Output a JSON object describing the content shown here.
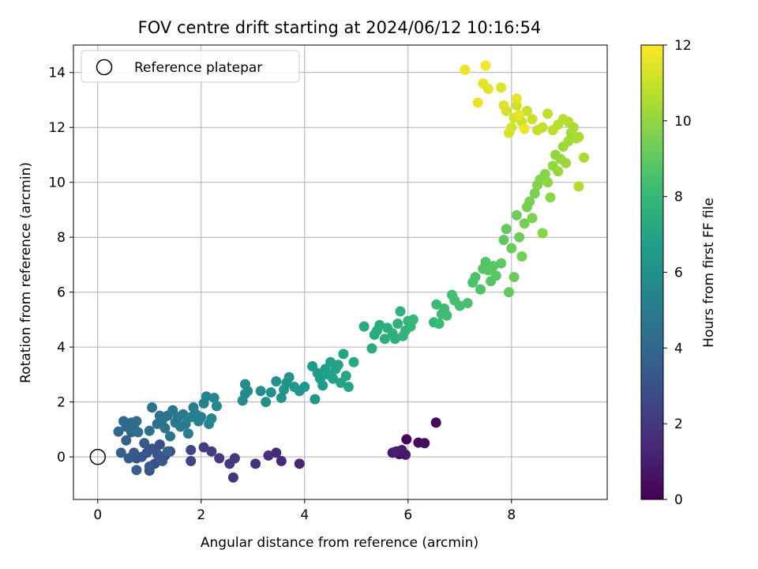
{
  "chart_data": {
    "type": "scatter",
    "title": "FOV centre drift starting at 2024/06/12 10:16:54",
    "xlabel": "Angular distance from reference (arcmin)",
    "ylabel": "Rotation from reference (arcmin)",
    "xlim": [
      -0.47,
      9.85
    ],
    "ylim": [
      -1.55,
      15.0
    ],
    "xticks": [
      0,
      2,
      4,
      6,
      8
    ],
    "yticks": [
      0,
      2,
      4,
      6,
      8,
      10,
      12,
      14
    ],
    "xtick_labels": [
      "0",
      "2",
      "4",
      "6",
      "8"
    ],
    "ytick_labels": [
      "0",
      "2",
      "4",
      "6",
      "8",
      "10",
      "12",
      "14"
    ],
    "grid": true,
    "legend": {
      "position": "top-left",
      "entries": [
        {
          "label": "Reference platepar",
          "marker": "open-circle"
        }
      ]
    },
    "reference_point": {
      "x": 0,
      "y": 0
    },
    "colorbar": {
      "label": "Hours from first FF file",
      "range": [
        0,
        12
      ],
      "ticks": [
        0,
        2,
        4,
        6,
        8,
        10,
        12
      ],
      "tick_labels": [
        "0",
        "2",
        "4",
        "6",
        "8",
        "10",
        "12"
      ],
      "colormap": "viridis",
      "stops": [
        "#440154",
        "#482878",
        "#3e4989",
        "#31688e",
        "#26828e",
        "#1f9e89",
        "#35b779",
        "#6ece58",
        "#b5de2b",
        "#fde725"
      ]
    },
    "points": [
      [
        6.54,
        1.25,
        0.1
      ],
      [
        5.97,
        0.64,
        0.2
      ],
      [
        6.2,
        0.52,
        0.3
      ],
      [
        6.32,
        0.5,
        0.4
      ],
      [
        5.78,
        0.2,
        0.5
      ],
      [
        5.83,
        0.1,
        0.6
      ],
      [
        5.7,
        0.15,
        0.7
      ],
      [
        5.95,
        0.08,
        0.8
      ],
      [
        5.88,
        0.25,
        0.9
      ],
      [
        5.75,
        0.18,
        1.0
      ],
      [
        3.9,
        -0.25,
        1.3
      ],
      [
        3.55,
        -0.15,
        1.4
      ],
      [
        3.45,
        0.15,
        1.5
      ],
      [
        3.3,
        0.05,
        1.6
      ],
      [
        3.05,
        -0.25,
        1.7
      ],
      [
        2.62,
        -0.75,
        1.8
      ],
      [
        2.65,
        -0.05,
        1.9
      ],
      [
        2.55,
        -0.25,
        2.0
      ],
      [
        2.35,
        -0.05,
        2.1
      ],
      [
        2.2,
        0.2,
        2.2
      ],
      [
        2.05,
        0.35,
        2.3
      ],
      [
        1.8,
        -0.15,
        2.4
      ],
      [
        1.8,
        0.25,
        2.5
      ],
      [
        1.4,
        0.2,
        2.6
      ],
      [
        1.3,
        0.05,
        2.7
      ],
      [
        1.2,
        0.45,
        2.8
      ],
      [
        1.1,
        -0.25,
        2.9
      ],
      [
        1.0,
        -0.5,
        3.0
      ],
      [
        0.95,
        0.15,
        3.0
      ],
      [
        0.85,
        0.0,
        3.1
      ],
      [
        1.05,
        0.3,
        3.1
      ],
      [
        1.15,
        0.1,
        3.2
      ],
      [
        0.75,
        -0.05,
        3.2
      ],
      [
        1.25,
        -0.15,
        3.3
      ],
      [
        0.9,
        0.5,
        3.3
      ],
      [
        1.0,
        -0.35,
        3.4
      ],
      [
        0.7,
        0.15,
        3.4
      ],
      [
        0.6,
        -0.05,
        3.5
      ],
      [
        0.45,
        0.15,
        3.6
      ],
      [
        0.75,
        -0.48,
        3.6
      ],
      [
        1.35,
        0.2,
        3.7
      ],
      [
        0.55,
        0.6,
        3.8
      ],
      [
        0.65,
        0.9,
        3.9
      ],
      [
        0.4,
        0.92,
        4.0
      ],
      [
        0.55,
        1.1,
        4.0
      ],
      [
        0.5,
        1.3,
        4.1
      ],
      [
        0.65,
        1.25,
        4.1
      ],
      [
        0.75,
        1.3,
        4.2
      ],
      [
        0.7,
        1.05,
        4.2
      ],
      [
        0.78,
        0.9,
        4.3
      ],
      [
        1.0,
        0.95,
        4.3
      ],
      [
        1.05,
        1.8,
        4.4
      ],
      [
        1.15,
        1.2,
        4.4
      ],
      [
        1.2,
        1.5,
        4.5
      ],
      [
        1.25,
        1.35,
        4.5
      ],
      [
        1.3,
        1.05,
        4.6
      ],
      [
        1.35,
        1.5,
        4.6
      ],
      [
        1.4,
        0.75,
        4.7
      ],
      [
        1.45,
        1.7,
        4.7
      ],
      [
        1.5,
        1.25,
        4.8
      ],
      [
        1.55,
        1.45,
        4.8
      ],
      [
        1.6,
        1.1,
        4.9
      ],
      [
        1.65,
        1.55,
        4.9
      ],
      [
        1.7,
        1.2,
        5.0
      ],
      [
        1.75,
        0.85,
        5.0
      ],
      [
        1.8,
        1.45,
        5.1
      ],
      [
        1.85,
        1.8,
        5.1
      ],
      [
        1.9,
        1.55,
        5.2
      ],
      [
        1.95,
        1.3,
        5.2
      ],
      [
        2.0,
        1.45,
        5.3
      ],
      [
        2.05,
        1.95,
        5.3
      ],
      [
        2.1,
        2.2,
        5.4
      ],
      [
        2.15,
        1.2,
        5.4
      ],
      [
        2.2,
        1.4,
        5.5
      ],
      [
        2.25,
        2.15,
        5.5
      ],
      [
        2.3,
        1.85,
        5.6
      ],
      [
        2.8,
        2.05,
        5.7
      ],
      [
        2.85,
        2.3,
        5.7
      ],
      [
        2.9,
        2.4,
        5.8
      ],
      [
        2.85,
        2.65,
        5.8
      ],
      [
        3.15,
        2.4,
        5.9
      ],
      [
        3.25,
        2.0,
        5.9
      ],
      [
        3.35,
        2.35,
        6.0
      ],
      [
        3.45,
        2.75,
        6.0
      ],
      [
        3.55,
        2.15,
        6.1
      ],
      [
        3.65,
        2.7,
        6.1
      ],
      [
        3.6,
        2.45,
        6.2
      ],
      [
        3.7,
        2.9,
        6.2
      ],
      [
        3.8,
        2.55,
        6.3
      ],
      [
        3.9,
        2.4,
        6.3
      ],
      [
        4.0,
        2.55,
        6.4
      ],
      [
        4.2,
        2.1,
        6.4
      ],
      [
        4.15,
        3.3,
        6.5
      ],
      [
        4.25,
        3.05,
        6.5
      ],
      [
        4.3,
        2.85,
        6.6
      ],
      [
        4.35,
        2.6,
        6.6
      ],
      [
        4.4,
        3.2,
        6.7
      ],
      [
        4.45,
        3.0,
        6.7
      ],
      [
        4.5,
        3.45,
        6.8
      ],
      [
        4.55,
        2.85,
        6.8
      ],
      [
        4.6,
        3.2,
        6.9
      ],
      [
        4.65,
        3.35,
        6.9
      ],
      [
        4.7,
        2.7,
        7.0
      ],
      [
        4.75,
        3.75,
        7.0
      ],
      [
        4.8,
        2.95,
        7.1
      ],
      [
        4.85,
        2.55,
        7.1
      ],
      [
        4.95,
        3.45,
        7.2
      ],
      [
        5.15,
        4.75,
        7.2
      ],
      [
        5.3,
        3.95,
        7.3
      ],
      [
        5.35,
        4.45,
        7.3
      ],
      [
        5.4,
        4.6,
        7.4
      ],
      [
        5.45,
        4.8,
        7.4
      ],
      [
        5.55,
        4.3,
        7.5
      ],
      [
        5.6,
        4.7,
        7.5
      ],
      [
        5.7,
        4.5,
        7.6
      ],
      [
        5.75,
        4.3,
        7.6
      ],
      [
        5.8,
        4.85,
        7.7
      ],
      [
        5.85,
        5.3,
        7.7
      ],
      [
        5.9,
        4.4,
        7.8
      ],
      [
        5.95,
        4.6,
        7.8
      ],
      [
        6.0,
        4.95,
        7.9
      ],
      [
        6.05,
        4.75,
        7.9
      ],
      [
        6.1,
        5.0,
        8.0
      ],
      [
        6.5,
        4.9,
        8.0
      ],
      [
        6.55,
        5.55,
        8.1
      ],
      [
        6.6,
        4.85,
        8.1
      ],
      [
        6.65,
        5.2,
        8.2
      ],
      [
        6.7,
        5.4,
        8.2
      ],
      [
        6.75,
        5.15,
        8.3
      ],
      [
        6.85,
        5.9,
        8.3
      ],
      [
        6.9,
        5.7,
        8.4
      ],
      [
        7.0,
        5.5,
        8.4
      ],
      [
        7.15,
        5.6,
        8.5
      ],
      [
        7.25,
        6.35,
        8.5
      ],
      [
        7.3,
        6.55,
        8.6
      ],
      [
        7.4,
        6.1,
        8.6
      ],
      [
        7.45,
        6.85,
        8.7
      ],
      [
        7.5,
        7.1,
        8.7
      ],
      [
        7.55,
        6.8,
        8.8
      ],
      [
        7.6,
        6.4,
        8.8
      ],
      [
        7.65,
        6.95,
        8.9
      ],
      [
        7.7,
        6.6,
        8.9
      ],
      [
        7.8,
        7.05,
        9.0
      ],
      [
        7.85,
        7.9,
        9.0
      ],
      [
        7.9,
        8.3,
        9.1
      ],
      [
        7.95,
        6.0,
        9.1
      ],
      [
        8.0,
        7.6,
        9.2
      ],
      [
        8.05,
        6.55,
        9.2
      ],
      [
        8.1,
        8.8,
        9.3
      ],
      [
        8.15,
        8.0,
        9.3
      ],
      [
        8.2,
        7.3,
        9.4
      ],
      [
        8.25,
        8.5,
        9.4
      ],
      [
        8.3,
        9.1,
        9.5
      ],
      [
        8.35,
        9.3,
        9.5
      ],
      [
        8.4,
        8.7,
        9.6
      ],
      [
        8.45,
        9.6,
        9.6
      ],
      [
        8.5,
        9.9,
        9.7
      ],
      [
        8.55,
        10.1,
        9.7
      ],
      [
        8.6,
        8.15,
        9.8
      ],
      [
        8.65,
        10.3,
        9.8
      ],
      [
        8.7,
        10.0,
        9.9
      ],
      [
        8.75,
        9.45,
        9.9
      ],
      [
        8.8,
        10.6,
        10.0
      ],
      [
        8.85,
        11.0,
        10.0
      ],
      [
        8.9,
        10.4,
        10.1
      ],
      [
        8.95,
        10.85,
        10.1
      ],
      [
        9.0,
        11.3,
        10.2
      ],
      [
        9.05,
        10.7,
        10.2
      ],
      [
        9.1,
        11.5,
        10.3
      ],
      [
        9.15,
        11.8,
        10.3
      ],
      [
        9.2,
        12.0,
        10.4
      ],
      [
        9.25,
        11.6,
        10.4
      ],
      [
        9.3,
        11.65,
        10.5
      ],
      [
        9.4,
        10.9,
        10.5
      ],
      [
        9.3,
        9.85,
        10.6
      ],
      [
        9.1,
        12.2,
        10.6
      ],
      [
        9.0,
        12.3,
        10.7
      ],
      [
        8.9,
        12.1,
        10.7
      ],
      [
        8.8,
        11.9,
        10.8
      ],
      [
        8.7,
        12.5,
        10.8
      ],
      [
        8.6,
        12.0,
        10.9
      ],
      [
        8.5,
        11.9,
        10.9
      ],
      [
        8.4,
        12.3,
        11.0
      ],
      [
        8.3,
        12.6,
        11.0
      ],
      [
        8.2,
        12.2,
        11.1
      ],
      [
        8.1,
        12.8,
        11.1
      ],
      [
        8.05,
        12.35,
        11.2
      ],
      [
        8.0,
        12.0,
        11.2
      ],
      [
        7.95,
        11.8,
        11.3
      ],
      [
        7.9,
        12.6,
        11.3
      ],
      [
        7.85,
        12.8,
        11.4
      ],
      [
        7.8,
        13.45,
        11.4
      ],
      [
        7.55,
        13.4,
        11.5
      ],
      [
        7.45,
        13.6,
        11.5
      ],
      [
        7.35,
        12.9,
        11.6
      ],
      [
        7.1,
        14.1,
        11.7
      ],
      [
        7.5,
        14.25,
        11.8
      ],
      [
        8.1,
        13.05,
        11.6
      ],
      [
        8.25,
        11.95,
        11.7
      ],
      [
        8.15,
        12.45,
        11.6
      ]
    ]
  }
}
